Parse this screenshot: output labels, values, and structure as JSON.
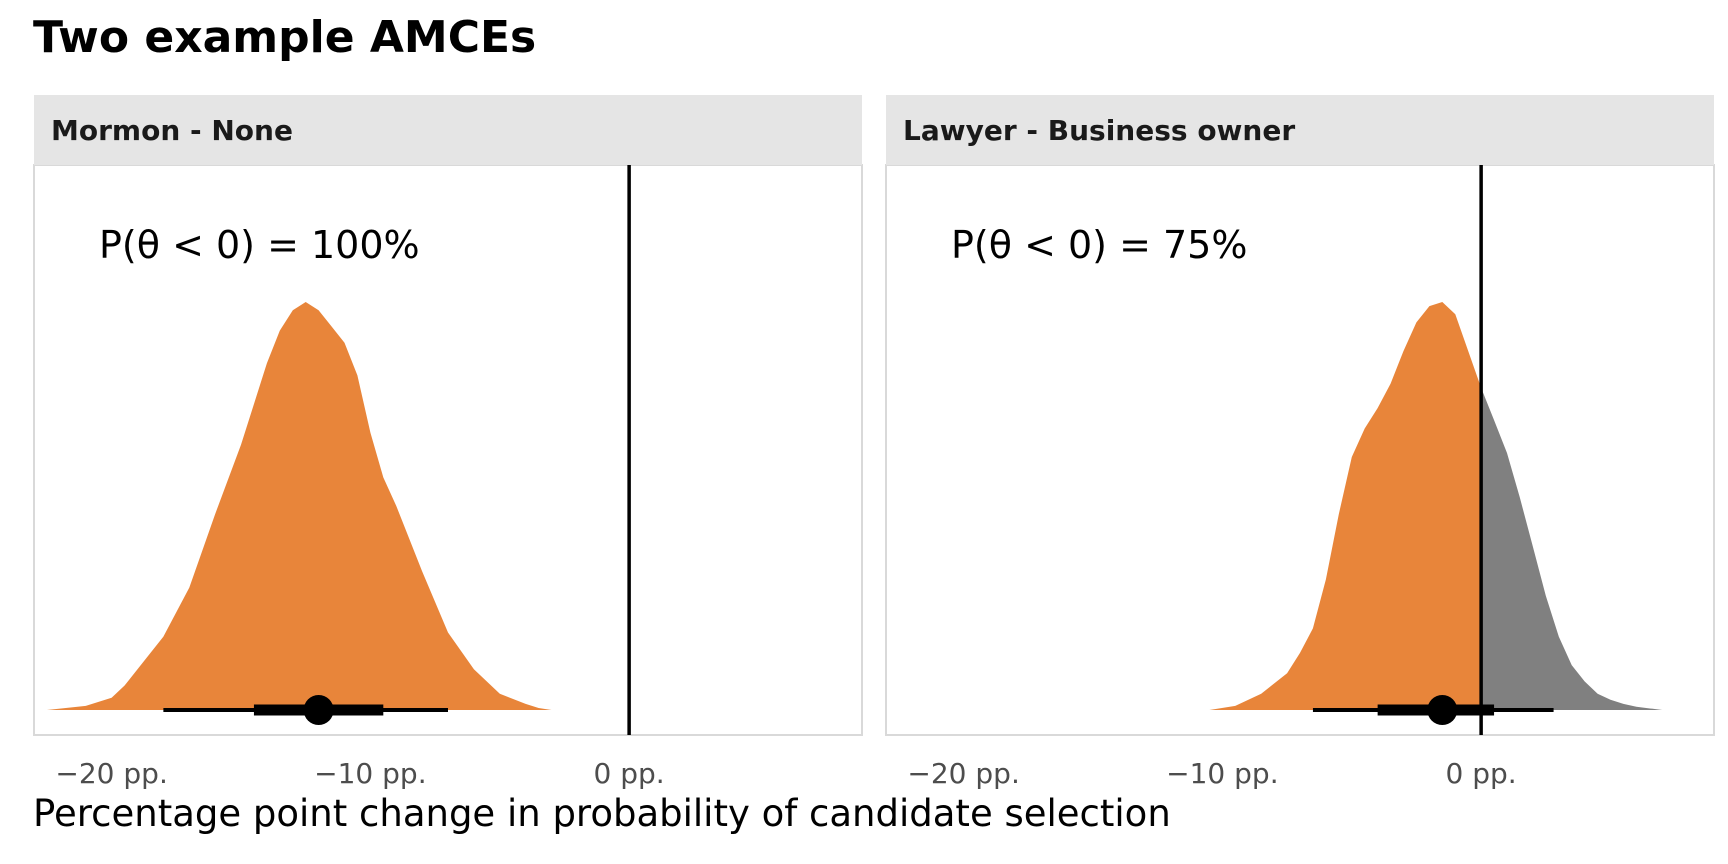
{
  "chart_data": {
    "type": "area",
    "title": "Two example AMCEs",
    "xlabel": "Percentage point change in probability of candidate selection",
    "ylabel": "",
    "xlim": [
      -23,
      9
    ],
    "x_ticks": [
      -20,
      -10,
      0
    ],
    "x_tick_labels": [
      "−20 pp.",
      "−10 pp.",
      "0 pp."
    ],
    "reference_line_x": 0,
    "grid": false,
    "colors": {
      "below_zero": "#e8853a",
      "above_zero": "#808080",
      "point_interval": "#000000",
      "strip_bg": "#e5e5e5",
      "panel_border": "#d9d9d9"
    },
    "panels": [
      {
        "strip_label": "Mormon - None",
        "annotation": "P(θ < 0) = 100%",
        "density": {
          "x": [
            -22.5,
            -21,
            -20,
            -19.5,
            -19,
            -18,
            -17,
            -16,
            -15,
            -14,
            -13.5,
            -13,
            -12.5,
            -12,
            -11.5,
            -11,
            -10.5,
            -10,
            -9.5,
            -9,
            -8.5,
            -8,
            -7,
            -6,
            -5,
            -4,
            -3.5,
            -3
          ],
          "y": [
            0.0,
            0.01,
            0.03,
            0.06,
            0.1,
            0.18,
            0.3,
            0.48,
            0.65,
            0.85,
            0.93,
            0.98,
            1.0,
            0.98,
            0.94,
            0.9,
            0.82,
            0.68,
            0.57,
            0.5,
            0.42,
            0.34,
            0.19,
            0.1,
            0.04,
            0.015,
            0.005,
            0.0
          ]
        },
        "median": -12.0,
        "interval_66": [
          -14.5,
          -9.5
        ],
        "interval_95": [
          -18.0,
          -7.0
        ]
      },
      {
        "strip_label": "Lawyer - Business owner",
        "annotation": "P(θ < 0) = 75%",
        "density": {
          "x": [
            -10.5,
            -9.5,
            -8.5,
            -7.5,
            -7,
            -6.5,
            -6,
            -5.5,
            -5,
            -4.5,
            -4,
            -3.5,
            -3,
            -2.5,
            -2,
            -1.5,
            -1,
            -0.5,
            0,
            0.5,
            1,
            1.5,
            2,
            2.5,
            3,
            3.5,
            4,
            4.5,
            5,
            5.5,
            6,
            7
          ],
          "y": [
            0.0,
            0.01,
            0.04,
            0.09,
            0.14,
            0.2,
            0.32,
            0.48,
            0.62,
            0.69,
            0.74,
            0.8,
            0.88,
            0.95,
            0.99,
            1.0,
            0.97,
            0.88,
            0.79,
            0.71,
            0.63,
            0.52,
            0.4,
            0.28,
            0.18,
            0.11,
            0.07,
            0.04,
            0.025,
            0.015,
            0.008,
            0.0
          ]
        },
        "median": -1.5,
        "interval_66": [
          -4.0,
          0.5
        ],
        "interval_95": [
          -6.5,
          2.8
        ]
      }
    ]
  }
}
